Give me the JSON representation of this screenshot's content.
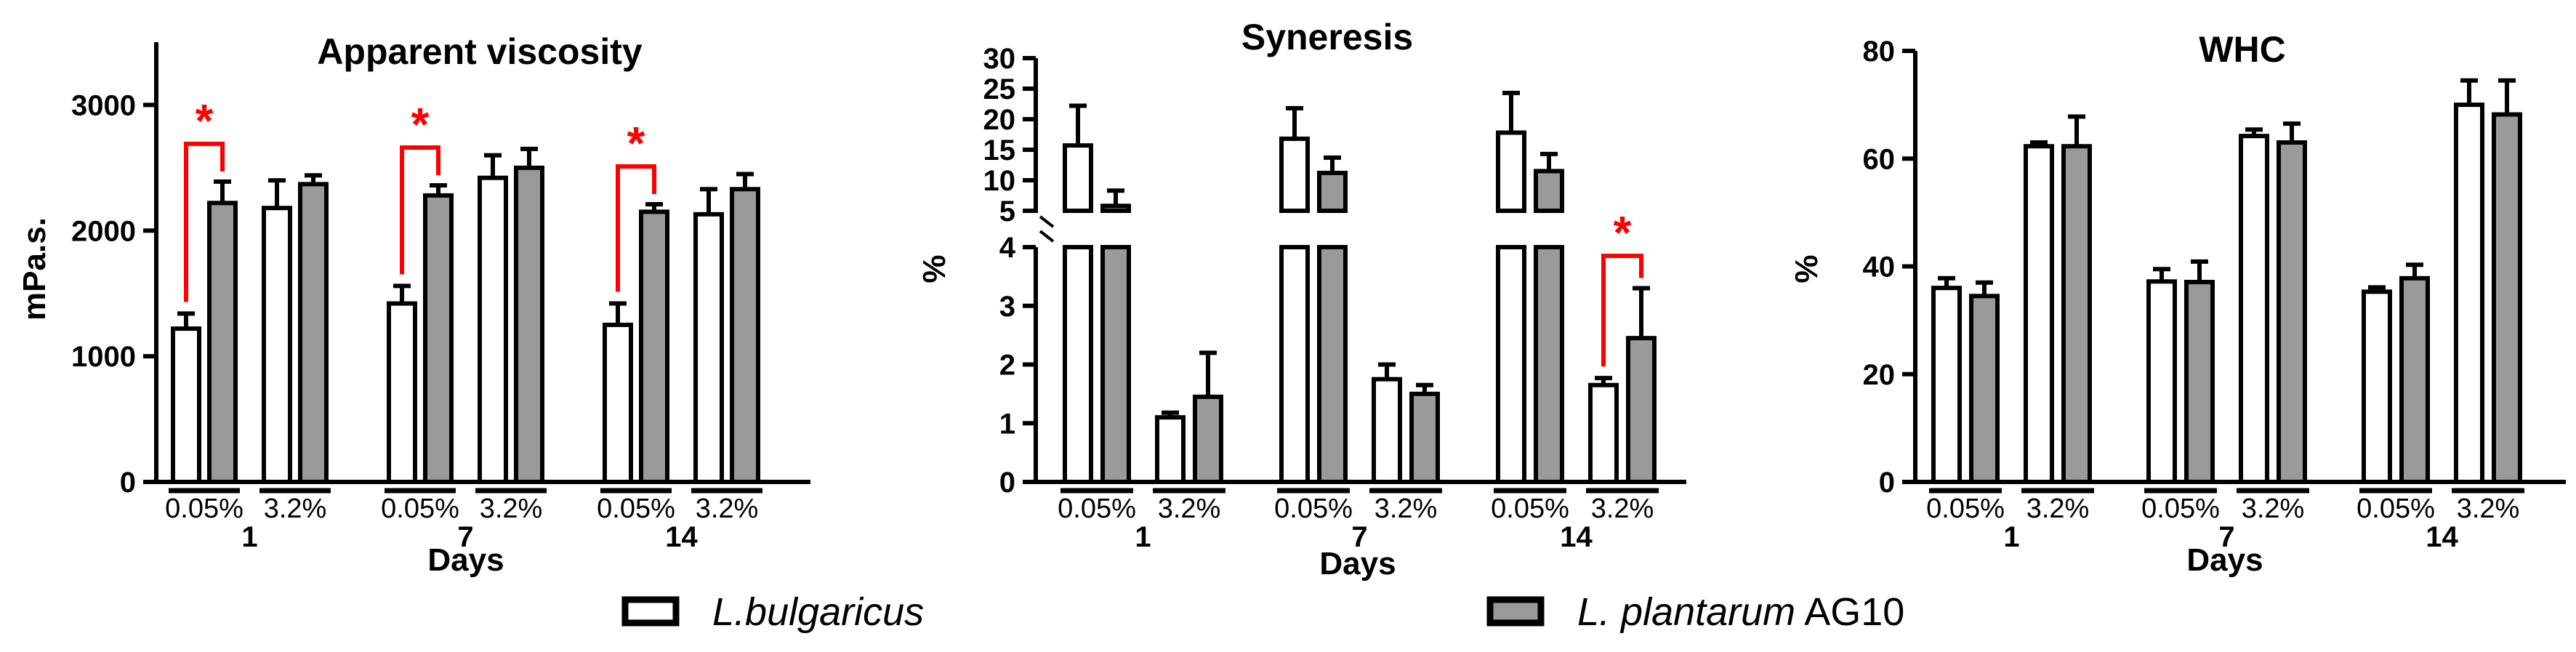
{
  "colors": {
    "bulgaricus": "#ffffff",
    "plantarum": "#9a9a9a",
    "axis": "#000000",
    "significance": "#ff0000"
  },
  "legend": {
    "items": [
      {
        "italic": "L.bulgaricus",
        "plain": "",
        "color": "#ffffff"
      },
      {
        "italic": "L. plantarum",
        "plain": " AG10",
        "color": "#9a9a9a"
      }
    ]
  },
  "chart_data": [
    {
      "type": "bar",
      "title": "Apparent viscosity",
      "ylabel": "mPa.s.",
      "xlabel": "Days",
      "ylim": [
        0,
        3500
      ],
      "yticks": [
        0,
        1000,
        2000,
        3000
      ],
      "days": [
        "1",
        "7",
        "14"
      ],
      "concentrations": [
        "0.05%",
        "3.2%"
      ],
      "series": [
        {
          "name": "L.bulgaricus",
          "values": [
            1220,
            2180,
            1420,
            2420,
            1250,
            2130
          ],
          "errors": [
            120,
            220,
            140,
            180,
            170,
            200
          ]
        },
        {
          "name": "L. plantarum AG10",
          "values": [
            2220,
            2370,
            2280,
            2500,
            2150,
            2330
          ],
          "errors": [
            170,
            70,
            80,
            150,
            60,
            120
          ]
        }
      ],
      "significance": [
        {
          "day_index": 0,
          "label": "*"
        },
        {
          "day_index": 1,
          "label": "*"
        },
        {
          "day_index": 2,
          "label": "*"
        }
      ]
    },
    {
      "type": "bar",
      "title": "Syneresis",
      "ylabel": "%",
      "xlabel": "Days",
      "broken_axis": true,
      "lower_range": [
        0,
        4
      ],
      "upper_range": [
        5,
        30
      ],
      "yticks_lower": [
        0,
        1,
        2,
        3,
        4
      ],
      "yticks_upper": [
        5,
        10,
        15,
        20,
        25,
        30
      ],
      "days": [
        "1",
        "7",
        "14"
      ],
      "concentrations": [
        "0.05%",
        "3.2%"
      ],
      "series": [
        {
          "name": "L.bulgaricus",
          "values": [
            15.7,
            1.1,
            16.8,
            1.75,
            17.8,
            1.65
          ],
          "errors": [
            6.5,
            0.08,
            5,
            0.25,
            6.5,
            0.12
          ]
        },
        {
          "name": "L. plantarum AG10",
          "values": [
            5.8,
            1.45,
            11.2,
            1.5,
            11.5,
            2.45
          ],
          "errors": [
            2.5,
            0.75,
            2.5,
            0.15,
            2.8,
            0.85
          ]
        }
      ],
      "significance": [
        {
          "day_index": 2,
          "concentration_index": 1,
          "label": "*"
        }
      ]
    },
    {
      "type": "bar",
      "title": "WHC",
      "ylabel": "%",
      "xlabel": "Days",
      "ylim": [
        0,
        80
      ],
      "yticks": [
        0,
        20,
        40,
        60,
        80
      ],
      "days": [
        "1",
        "7",
        "14"
      ],
      "concentrations": [
        "0.05%",
        "3.2%"
      ],
      "series": [
        {
          "name": "L.bulgaricus",
          "values": [
            36,
            62.3,
            37.2,
            64.2,
            35.3,
            70
          ],
          "errors": [
            1.8,
            0.7,
            2.3,
            1.2,
            0.8,
            4.5
          ]
        },
        {
          "name": "L. plantarum AG10",
          "values": [
            34.5,
            62.3,
            37.1,
            63,
            37.8,
            68.2
          ],
          "errors": [
            2.5,
            5.5,
            3.8,
            3.5,
            2.5,
            6.3
          ]
        }
      ]
    }
  ]
}
